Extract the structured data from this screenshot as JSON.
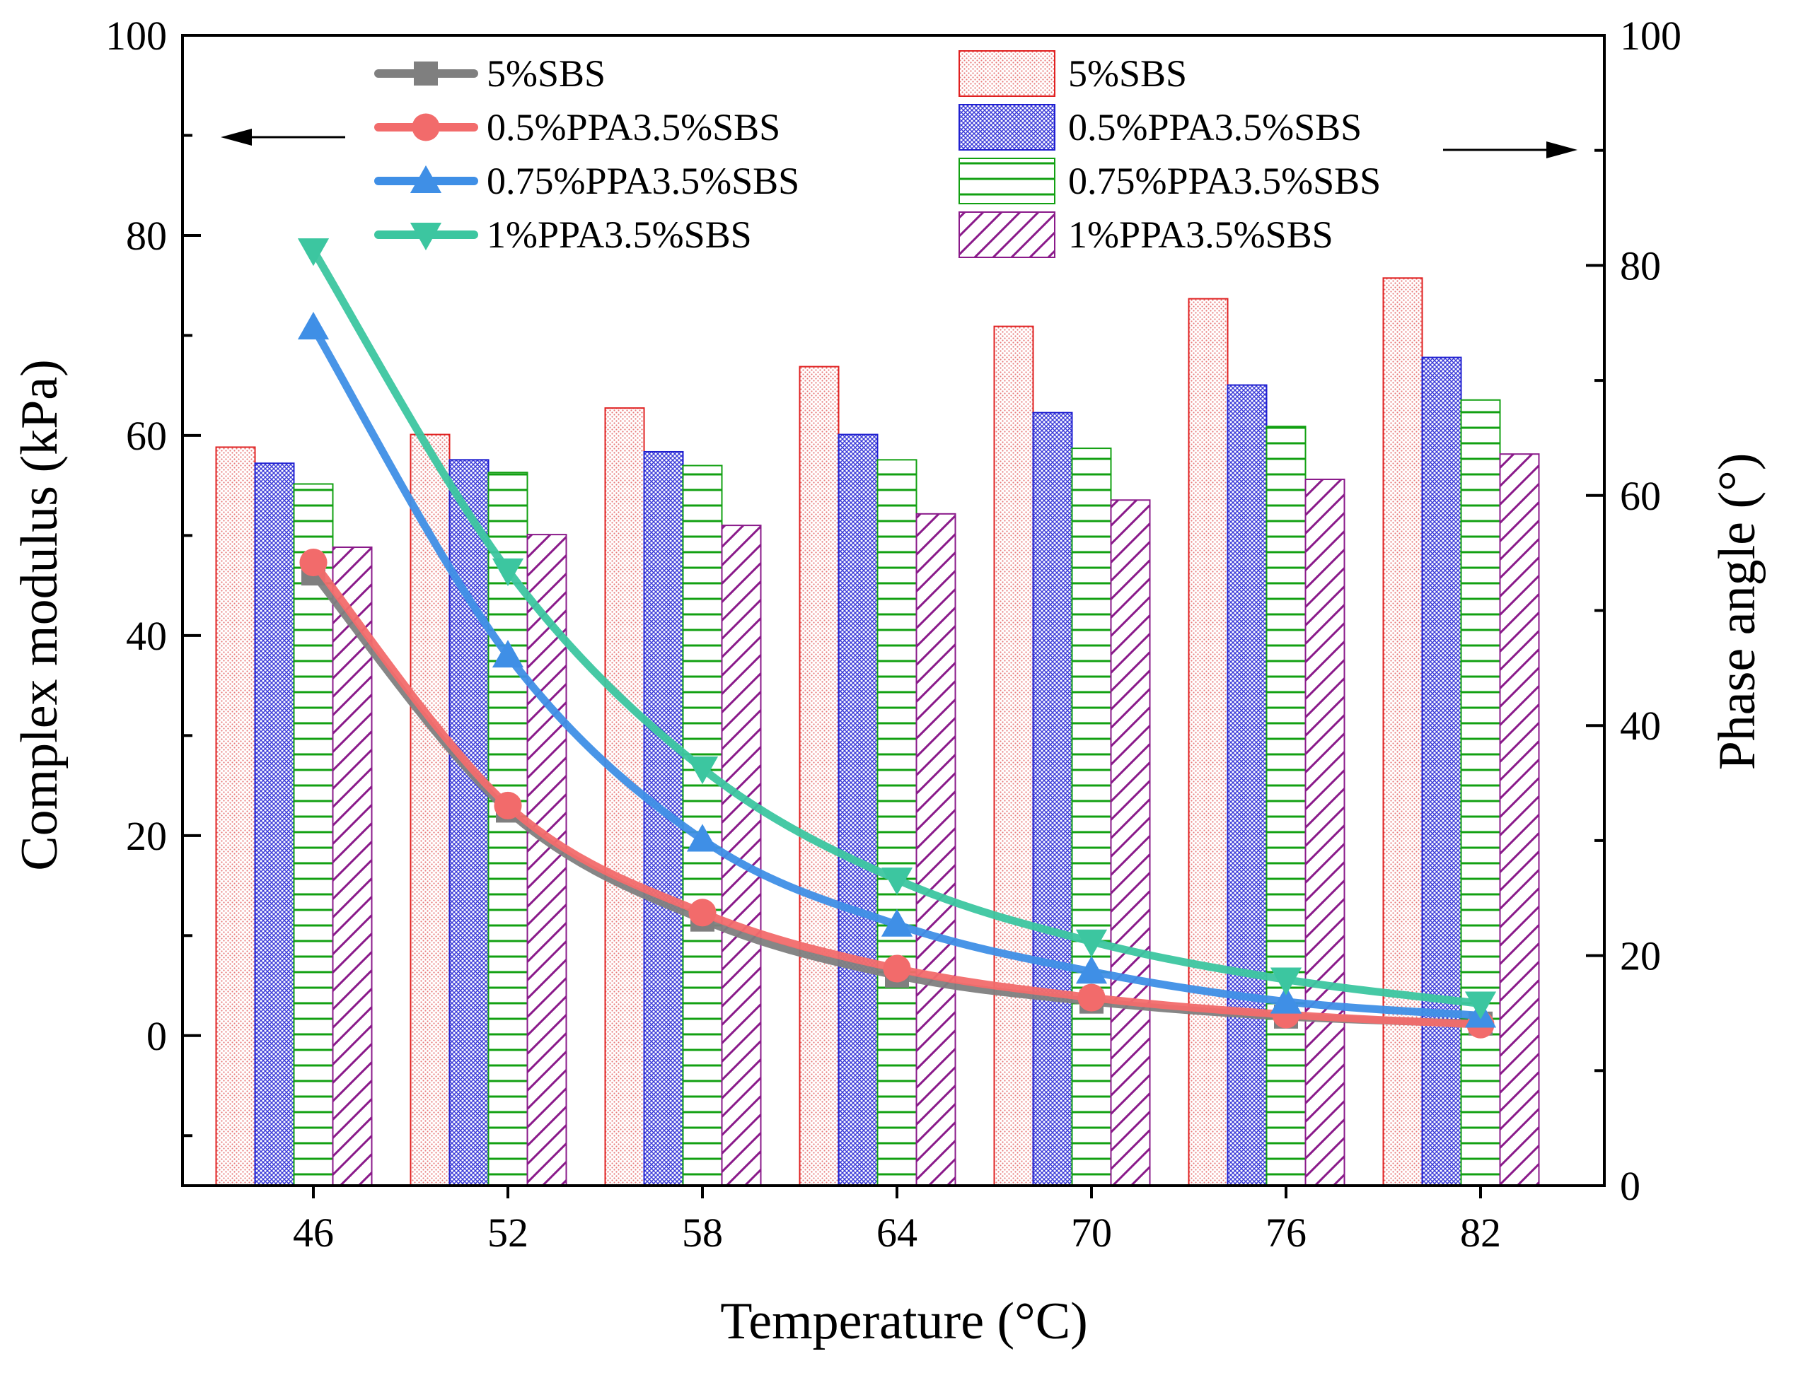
{
  "chart_data": {
    "type": "bar",
    "title": "",
    "xlabel": "Temperature (°C)",
    "ylabel_left": "Complex modulus (kPa)",
    "ylabel_right": "Phase angle (°)",
    "categories": [
      "46",
      "52",
      "58",
      "64",
      "70",
      "76",
      "82"
    ],
    "ylim_left": [
      -15,
      100
    ],
    "ylim_right": [
      0,
      100
    ],
    "yticks_left": [
      "0",
      "20",
      "40",
      "60",
      "80",
      "100"
    ],
    "yticks_right": [
      "0",
      "20",
      "40",
      "60",
      "80",
      "100"
    ],
    "legend_location": "top",
    "line_series": [
      {
        "name": "5%SBS",
        "marker": "square",
        "color": "#7f7f7f",
        "values": [
          46.2,
          22.5,
          11.6,
          6.0,
          3.4,
          1.9,
          1.2
        ]
      },
      {
        "name": "0.5%PPA3.5%SBS",
        "marker": "circle",
        "color": "#f26b6b",
        "values": [
          47.3,
          23.0,
          12.3,
          6.7,
          3.8,
          2.1,
          1.1
        ]
      },
      {
        "name": "0.75%PPA3.5%SBS",
        "marker": "triangle-up",
        "color": "#3f8fe6",
        "values": [
          70.8,
          38.0,
          19.6,
          11.1,
          6.4,
          3.4,
          2.0
        ]
      },
      {
        "name": "1%PPA3.5%SBS",
        "marker": "triangle-down",
        "color": "#3cc6a0",
        "values": [
          78.5,
          46.5,
          26.7,
          15.6,
          9.4,
          5.6,
          3.2
        ]
      }
    ],
    "bar_series": [
      {
        "name": "5%SBS",
        "pattern": "dots",
        "color": "#e02020",
        "values": [
          64.2,
          65.3,
          67.6,
          71.2,
          74.7,
          77.1,
          78.9
        ]
      },
      {
        "name": "0.5%PPA3.5%SBS",
        "pattern": "crosshatch",
        "color": "#2020d0",
        "values": [
          62.8,
          63.1,
          63.8,
          65.3,
          67.2,
          69.6,
          72.0
        ]
      },
      {
        "name": "0.75%PPA3.5%SBS",
        "pattern": "horizontal",
        "color": "#12a012",
        "values": [
          61.0,
          62.0,
          62.6,
          63.1,
          64.1,
          66.0,
          68.3
        ]
      },
      {
        "name": "1%PPA3.5%SBS",
        "pattern": "diagonal",
        "color": "#8a1a8a",
        "values": [
          55.5,
          56.6,
          57.4,
          58.4,
          59.6,
          61.4,
          63.6
        ]
      }
    ]
  }
}
